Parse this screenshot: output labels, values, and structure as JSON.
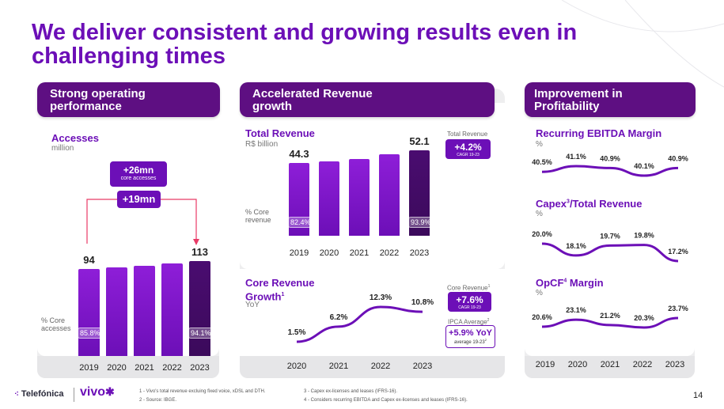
{
  "title": "We deliver consistent and growing results even in challenging times",
  "page_number": "14",
  "colors": {
    "purple": "#6c0fb7",
    "dark_purple": "#3b0a5b",
    "header": "#5e0f82",
    "panel_bg": "#eeeeef"
  },
  "panel1": {
    "header": "Strong operating performance",
    "section_title": "Accesses",
    "section_sub": "million",
    "growth_badge": "+26mn",
    "growth_badge_sub": "core accesses",
    "growth_badge2": "+19mn",
    "pct_label": "% Core accesses"
  },
  "panel2": {
    "header": "Accelerated Revenue growth",
    "revenue_title": "Total Revenue",
    "revenue_sub": "R$ billion",
    "cagr_caption": "Total Revenue",
    "cagr_value": "+4.2%",
    "cagr_sub": "CAGR 19-23",
    "pct_label": "% Core revenue",
    "core_title": "Core Revenue Growth",
    "core_sup": "1",
    "core_sub": "YoY",
    "core_caption": "Core Revenue",
    "core_caption_sup": "1",
    "core_cagr_value": "+7.6%",
    "core_cagr_sub": "CAGR 19-23",
    "ipca_caption": "IPCA Average",
    "ipca_sup": "2",
    "ipca_value": "+5.9% YoY",
    "ipca_sub": "average 19-23",
    "ipca_sub_sup": "2"
  },
  "panel3": {
    "header": "Improvement in Profitability",
    "ebitda_title": "Recurring EBITDA Margin",
    "capex_title_pre": "Capex",
    "capex_sup": "3",
    "capex_title_post": "/Total Revenue",
    "opcf_title_pre": "OpCF",
    "opcf_sup": "4",
    "opcf_title_post": " Margin",
    "unit": "%"
  },
  "footnotes": {
    "f1": "1 -  Vivo's total revenue excluing fixed voice, xDSL and DTH.",
    "f2": "2 -  Source: IBGE.",
    "f3": "3 -  Capex ex-licenses and leases (IFRS-16).",
    "f4": "4 -  Considers recurring EBITDA and Capex ex-licenses and leases (IFRS-16)."
  },
  "logos": {
    "telefonica": "Telefónica",
    "vivo": "vivo"
  },
  "chart_data": [
    {
      "type": "bar",
      "title": "Accesses",
      "categories": [
        "2019",
        "2020",
        "2021",
        "2022",
        "2023"
      ],
      "values": [
        94,
        98,
        102,
        108,
        113
      ],
      "data_labels": [
        "94",
        "",
        "",
        "",
        "113"
      ],
      "core_share_labels": [
        "85.8%",
        "",
        "",
        "",
        "94.1%"
      ],
      "ylim": [
        0,
        113
      ]
    },
    {
      "type": "bar",
      "title": "Total Revenue",
      "categories": [
        "2019",
        "2020",
        "2021",
        "2022",
        "2023"
      ],
      "values": [
        44.3,
        45.5,
        47.0,
        49.5,
        52.1
      ],
      "data_labels": [
        "44.3",
        "",
        "",
        "",
        "52.1"
      ],
      "core_share_labels": [
        "82.4%",
        "",
        "",
        "",
        "93.9%"
      ],
      "ylim": [
        30,
        52.1
      ]
    },
    {
      "type": "line",
      "title": "Core Revenue Growth",
      "categories": [
        "2020",
        "2021",
        "2022",
        "2023"
      ],
      "values": [
        1.5,
        6.2,
        12.3,
        10.8
      ],
      "labels": [
        "1.5%",
        "6.2%",
        "12.3%",
        "10.8%"
      ]
    },
    {
      "type": "line",
      "title": "Recurring EBITDA Margin",
      "categories": [
        "2019",
        "2020",
        "2021",
        "2022",
        "2023"
      ],
      "values": [
        40.5,
        41.1,
        40.9,
        40.1,
        40.9
      ],
      "labels": [
        "40.5%",
        "41.1%",
        "40.9%",
        "40.1%",
        "40.9%"
      ]
    },
    {
      "type": "line",
      "title": "Capex/Total Revenue",
      "categories": [
        "2019",
        "2020",
        "2021",
        "2022",
        "2023"
      ],
      "values": [
        20.0,
        18.1,
        19.7,
        19.8,
        17.2
      ],
      "labels": [
        "20.0%",
        "18.1%",
        "19.7%",
        "19.8%",
        "17.2%"
      ]
    },
    {
      "type": "line",
      "title": "OpCF Margin",
      "categories": [
        "2019",
        "2020",
        "2021",
        "2022",
        "2023"
      ],
      "values": [
        20.6,
        23.1,
        21.2,
        20.3,
        23.7
      ],
      "labels": [
        "20.6%",
        "23.1%",
        "21.2%",
        "20.3%",
        "23.7%"
      ]
    }
  ]
}
